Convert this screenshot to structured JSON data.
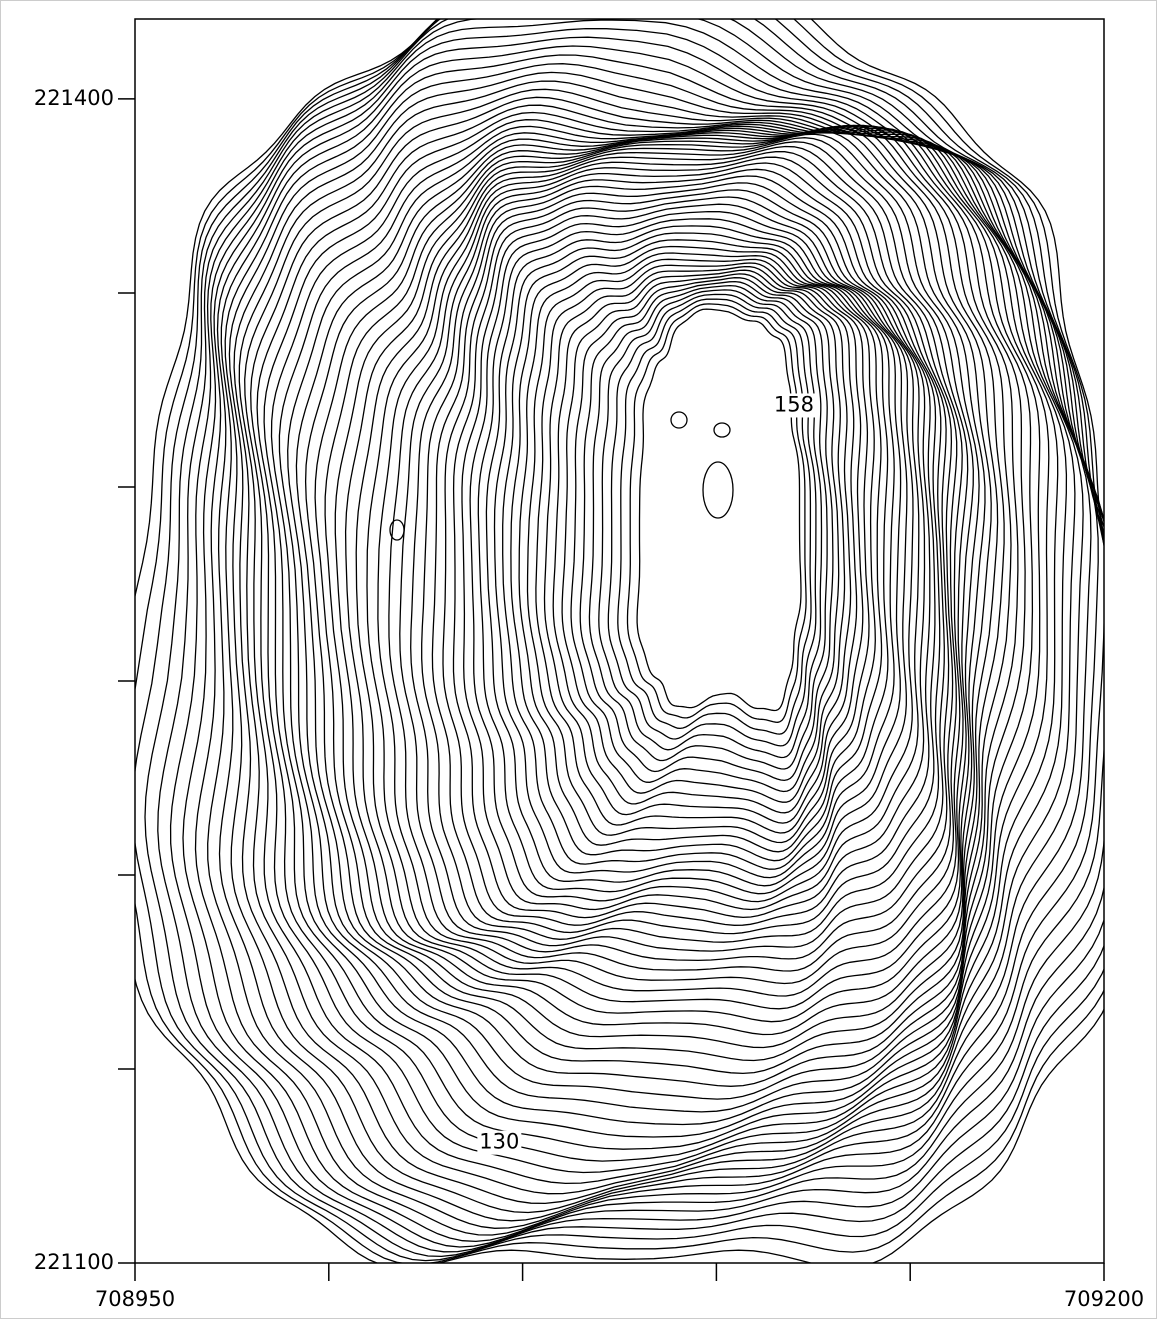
{
  "map": {
    "type": "contour",
    "xlim": [
      708950,
      709200
    ],
    "ylim": [
      221100,
      221420.6
    ],
    "xticks": [
      708950,
      {
        "value": 709000,
        "label": null
      },
      {
        "value": 709050,
        "label": null
      },
      {
        "value": 709100,
        "label": null
      },
      {
        "value": 709150,
        "label": null
      },
      709200
    ],
    "yticks": [
      221100,
      {
        "value": 221150,
        "label": null
      },
      {
        "value": 221200,
        "label": null
      },
      {
        "value": 221250,
        "label": null
      },
      {
        "value": 221300,
        "label": null
      },
      {
        "value": 221350,
        "label": null
      },
      221400
    ],
    "contour_labels": [
      {
        "value": 130,
        "x": 709044,
        "y": 221131
      },
      {
        "value": 158,
        "x": 709120,
        "y": 221321
      }
    ]
  }
}
